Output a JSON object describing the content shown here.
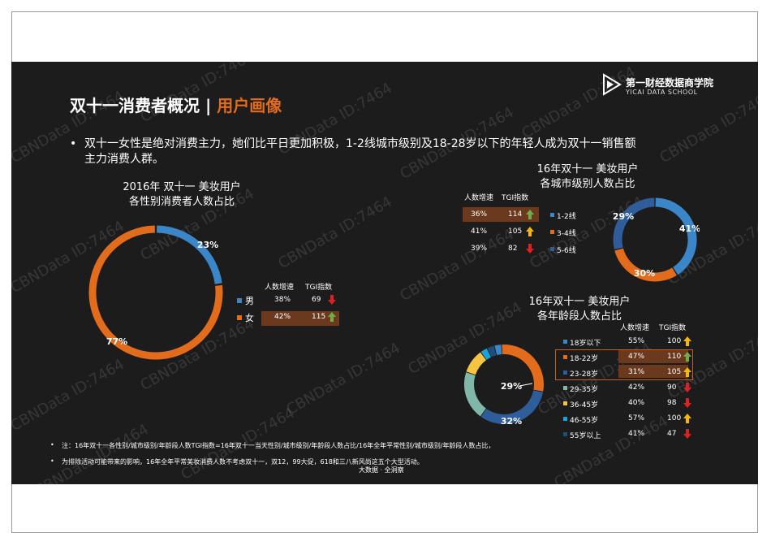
{
  "header": {
    "title_main": "双十一消费者概况 | ",
    "title_highlight": "用户画像",
    "logo_name": "第一财经数据商学院",
    "logo_sub": "YICAI DATA SCHOOL"
  },
  "bullet": {
    "marker": "•",
    "text": "双十一女性是绝对消费主力，她们比平日更加积极，1-2线城市级别及18-28岁以下的年轻人成为双十一销售额主力消费人群。"
  },
  "table_headers": {
    "growth": "人数增速",
    "tgi": "TGI指数"
  },
  "notes": {
    "marker": "•",
    "line1": "注：16年双十一各性别/城市级别/年龄段人数TGI指数=16年双十一当天性别/城市级别/年龄段人数占比/16年全年平常性别/城市级别/年龄段人数占比，",
    "line2": "为排除活动可能带来的影响，16年全年平常美妆消费人数不考虑双十一，双12，99大促，618和三八新风尚这五个大型活动。",
    "source": "大数据 · 全洞察"
  },
  "watermark": "CBNData ID:7464",
  "colors": {
    "orange": "#e36c1c",
    "blue": "#3b86c8",
    "navy": "#2f5d9a",
    "gray": "#8f8f8f",
    "yellow": "#f5c542",
    "teal": "#7fb7a8",
    "cyan": "#1aa3d9",
    "up_green": "#70ad47",
    "up_yellow": "#f5b800",
    "down_red": "#e02020"
  },
  "chart_data": [
    {
      "type": "pie",
      "title": "2016年 双十一 美妆用户\n各性别消费者人数占比",
      "title_line1": "2016年 双十一 美妆用户",
      "title_line2": "各性别消费者人数占比",
      "categories": [
        "男",
        "女"
      ],
      "values": [
        23,
        77
      ],
      "labels": [
        "23%",
        "77%"
      ],
      "colors": [
        "#3b86c8",
        "#e36c1c"
      ],
      "table": [
        {
          "name": "男",
          "growth": "38%",
          "tgi": "69",
          "arrow": "down"
        },
        {
          "name": "女",
          "growth": "42%",
          "tgi": "115",
          "arrow": "up"
        }
      ]
    },
    {
      "type": "pie",
      "title": "16年双十一 美妆用户\n各城市级别人数占比",
      "title_line1": "16年双十一 美妆用户",
      "title_line2": "各城市级别人数占比",
      "categories": [
        "1-2线",
        "3-4线",
        "5-6线"
      ],
      "values": [
        41,
        30,
        29
      ],
      "labels": [
        "41%",
        "30%",
        "29%"
      ],
      "colors": [
        "#3b86c8",
        "#e36c1c",
        "#2f5d9a"
      ],
      "table": [
        {
          "name": "1-2线",
          "growth": "36%",
          "tgi": "114",
          "arrow": "up"
        },
        {
          "name": "3-4线",
          "growth": "41%",
          "tgi": "105",
          "arrow": "up-yellow"
        },
        {
          "name": "5-6线",
          "growth": "39%",
          "tgi": "82",
          "arrow": "down"
        }
      ]
    },
    {
      "type": "pie",
      "title": "16年双十一 美妆用户\n各年龄段人数占比",
      "title_line1": "16年双十一 美妆用户",
      "title_line2": "各年龄段人数占比",
      "categories": [
        "18岁以下",
        "18-22岁",
        "23-28岁",
        "29-35岁",
        "36-45岁",
        "46-55岁",
        "55岁以上"
      ],
      "values": [
        3,
        29,
        32,
        20,
        10,
        3,
        3
      ],
      "labels": [
        "",
        "29%",
        "32%",
        "",
        "",
        "",
        ""
      ],
      "colors": [
        "#3b86c8",
        "#e36c1c",
        "#2f5d9a",
        "#7fb7a8",
        "#f5c542",
        "#1aa3d9",
        "#1f4e79"
      ],
      "table": [
        {
          "name": "18岁以下",
          "growth": "55%",
          "tgi": "100",
          "arrow": "up-yellow"
        },
        {
          "name": "18-22岁",
          "growth": "47%",
          "tgi": "110",
          "arrow": "up"
        },
        {
          "name": "23-28岁",
          "growth": "31%",
          "tgi": "105",
          "arrow": "up-yellow"
        },
        {
          "name": "29-35岁",
          "growth": "42%",
          "tgi": "90",
          "arrow": "down"
        },
        {
          "name": "36-45岁",
          "growth": "40%",
          "tgi": "98",
          "arrow": "down"
        },
        {
          "name": "46-55岁",
          "growth": "57%",
          "tgi": "100",
          "arrow": "up-yellow"
        },
        {
          "name": "55岁以上",
          "growth": "41%",
          "tgi": "47",
          "arrow": "down"
        }
      ]
    }
  ]
}
